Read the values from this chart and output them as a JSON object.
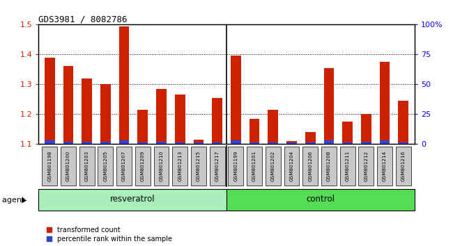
{
  "title": "GDS3981 / 8082786",
  "categories": [
    "GSM801198",
    "GSM801200",
    "GSM801203",
    "GSM801205",
    "GSM801207",
    "GSM801209",
    "GSM801210",
    "GSM801213",
    "GSM801215",
    "GSM801217",
    "GSM801199",
    "GSM801201",
    "GSM801202",
    "GSM801204",
    "GSM801206",
    "GSM801208",
    "GSM801211",
    "GSM801212",
    "GSM801214",
    "GSM801216"
  ],
  "red_values": [
    1.39,
    1.36,
    1.32,
    1.3,
    1.495,
    1.215,
    1.285,
    1.265,
    1.115,
    1.255,
    1.395,
    1.185,
    1.215,
    1.11,
    1.14,
    1.355,
    1.175,
    1.2,
    1.375,
    1.245
  ],
  "blue_percentile": [
    3,
    2,
    2,
    2,
    3,
    1,
    2,
    1,
    1,
    1,
    3,
    1,
    1,
    1,
    1,
    3,
    1,
    2,
    3,
    1
  ],
  "resveratrol_count": 10,
  "control_count": 10,
  "ylim_left": [
    1.1,
    1.5
  ],
  "ylim_right": [
    0,
    100
  ],
  "yticks_left": [
    1.1,
    1.2,
    1.3,
    1.4,
    1.5
  ],
  "yticks_right": [
    0,
    25,
    50,
    75,
    100
  ],
  "ytick_labels_right": [
    "0",
    "25",
    "50",
    "75",
    "100%"
  ],
  "bar_color_red": "#cc2200",
  "bar_color_blue": "#3344cc",
  "bg_color_plot": "#ffffff",
  "bg_color_xticklabels": "#c8c8c8",
  "bg_color_resveratrol": "#aaeebb",
  "bg_color_control": "#55dd55",
  "legend_red": "transformed count",
  "legend_blue": "percentile rank within the sample",
  "agent_label": "agent",
  "resveratrol_label": "resveratrol",
  "control_label": "control",
  "bar_width": 0.55
}
